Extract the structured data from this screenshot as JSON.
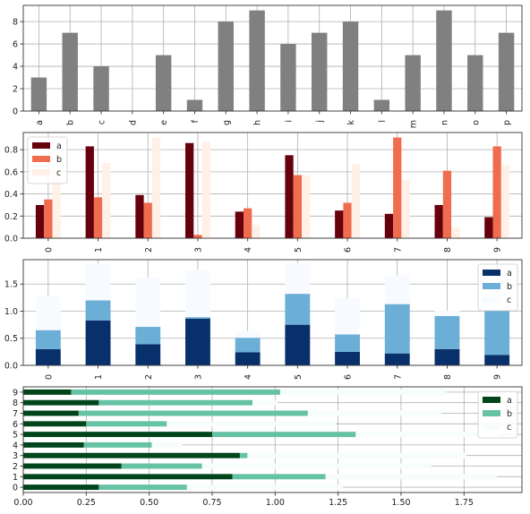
{
  "chart_data": [
    {
      "type": "bar",
      "orientation": "vertical",
      "categories": [
        "a",
        "b",
        "c",
        "d",
        "e",
        "f",
        "g",
        "h",
        "i",
        "j",
        "k",
        "l",
        "m",
        "n",
        "o",
        "p"
      ],
      "values": [
        3,
        7,
        4,
        0,
        5,
        1,
        8,
        9,
        6,
        7,
        8,
        1,
        5,
        9,
        5,
        7
      ],
      "ylim": [
        0,
        9.45
      ],
      "yticks": [
        0,
        2,
        4,
        6,
        8
      ],
      "ytick_labels": [
        "0",
        "2",
        "4",
        "6",
        "8"
      ],
      "grid": true,
      "colors": [
        "#808080"
      ]
    },
    {
      "type": "bar",
      "orientation": "vertical",
      "mode": "grouped",
      "categories": [
        "0",
        "1",
        "2",
        "3",
        "4",
        "5",
        "6",
        "7",
        "8",
        "9"
      ],
      "series": [
        {
          "name": "a",
          "values": [
            0.3,
            0.83,
            0.39,
            0.86,
            0.24,
            0.75,
            0.25,
            0.22,
            0.3,
            0.19
          ]
        },
        {
          "name": "b",
          "values": [
            0.35,
            0.37,
            0.32,
            0.03,
            0.27,
            0.57,
            0.32,
            0.91,
            0.61,
            0.83
          ]
        },
        {
          "name": "c",
          "values": [
            0.62,
            0.68,
            0.91,
            0.87,
            0.12,
            0.57,
            0.67,
            0.53,
            0.1,
            0.66
          ]
        }
      ],
      "colors": [
        "#67000d",
        "#f06c4f",
        "#fff0e8"
      ],
      "ylim": [
        0,
        0.955
      ],
      "yticks": [
        0,
        0.2,
        0.4,
        0.6,
        0.8
      ],
      "ytick_labels": [
        "0.0",
        "0.2",
        "0.4",
        "0.6",
        "0.8"
      ],
      "legend": "upper-left",
      "grid": true
    },
    {
      "type": "bar",
      "orientation": "vertical",
      "mode": "stacked",
      "categories": [
        "0",
        "1",
        "2",
        "3",
        "4",
        "5",
        "6",
        "7",
        "8",
        "9"
      ],
      "series": [
        {
          "name": "a",
          "values": [
            0.3,
            0.83,
            0.39,
            0.86,
            0.24,
            0.75,
            0.25,
            0.22,
            0.3,
            0.19
          ]
        },
        {
          "name": "b",
          "values": [
            0.35,
            0.37,
            0.32,
            0.03,
            0.27,
            0.57,
            0.32,
            0.91,
            0.61,
            0.83
          ]
        },
        {
          "name": "c",
          "values": [
            0.62,
            0.68,
            0.91,
            0.87,
            0.12,
            0.57,
            0.67,
            0.53,
            0.1,
            0.66
          ]
        }
      ],
      "colors": [
        "#08306b",
        "#6baed6",
        "#f7fbff"
      ],
      "ylim": [
        0,
        1.95
      ],
      "yticks": [
        0,
        0.5,
        1.0,
        1.5
      ],
      "ytick_labels": [
        "0.0",
        "0.5",
        "1.0",
        "1.5"
      ],
      "legend": "upper-right",
      "grid": true
    },
    {
      "type": "bar",
      "orientation": "horizontal",
      "mode": "stacked",
      "categories": [
        "0",
        "1",
        "2",
        "3",
        "4",
        "5",
        "6",
        "7",
        "8",
        "9"
      ],
      "series": [
        {
          "name": "a",
          "values": [
            0.3,
            0.83,
            0.39,
            0.86,
            0.24,
            0.75,
            0.25,
            0.22,
            0.3,
            0.19
          ]
        },
        {
          "name": "b",
          "values": [
            0.35,
            0.37,
            0.32,
            0.03,
            0.27,
            0.57,
            0.32,
            0.91,
            0.61,
            0.83
          ]
        },
        {
          "name": "c",
          "values": [
            0.62,
            0.68,
            0.91,
            0.87,
            0.12,
            0.57,
            0.67,
            0.53,
            0.1,
            0.66
          ]
        }
      ],
      "colors": [
        "#00441b",
        "#66c2a4",
        "#f7fcfd"
      ],
      "xlim": [
        0,
        1.98
      ],
      "xticks": [
        0,
        0.25,
        0.5,
        0.75,
        1.0,
        1.25,
        1.5,
        1.75
      ],
      "xtick_labels": [
        "0.00",
        "0.25",
        "0.50",
        "0.75",
        "1.00",
        "1.25",
        "1.50",
        "1.75"
      ],
      "legend": "upper-right",
      "grid": true
    }
  ]
}
